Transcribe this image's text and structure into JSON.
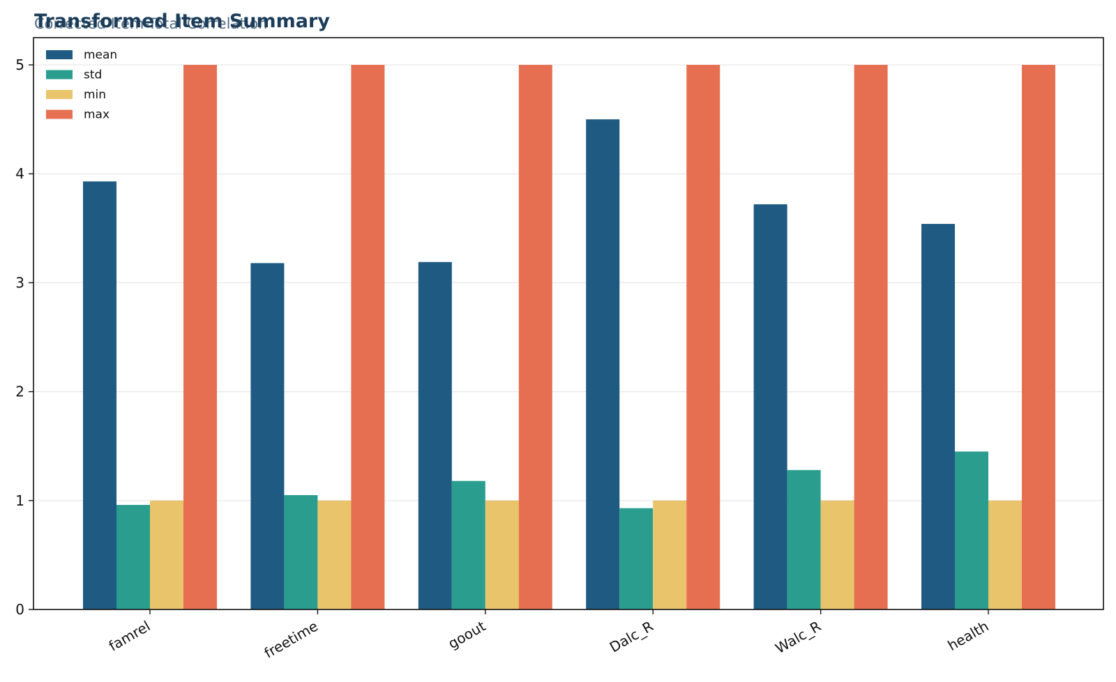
{
  "chart_data": {
    "type": "bar",
    "title": "Transformed Item Summary",
    "subtitle": "Corrected Item-Total Correlation",
    "xlabel": "",
    "ylabel": "",
    "categories": [
      "famrel",
      "freetime",
      "goout",
      "Dalc_R",
      "Walc_R",
      "health"
    ],
    "series": [
      {
        "name": "mean",
        "color": "#1f5a82",
        "values": [
          3.93,
          3.18,
          3.19,
          4.5,
          3.72,
          3.54
        ]
      },
      {
        "name": "std",
        "color": "#2a9d8f",
        "values": [
          0.96,
          1.05,
          1.18,
          0.93,
          1.28,
          1.45
        ]
      },
      {
        "name": "min",
        "color": "#e9c46a",
        "values": [
          1,
          1,
          1,
          1,
          1,
          1
        ]
      },
      {
        "name": "max",
        "color": "#e76f51",
        "values": [
          5,
          5,
          5,
          5,
          5,
          5
        ]
      }
    ],
    "ylim": [
      0,
      5.25
    ],
    "yticks": [
      "0",
      "1",
      "2",
      "3",
      "4",
      "5"
    ],
    "grid": "y",
    "legend_position": "top-left"
  }
}
